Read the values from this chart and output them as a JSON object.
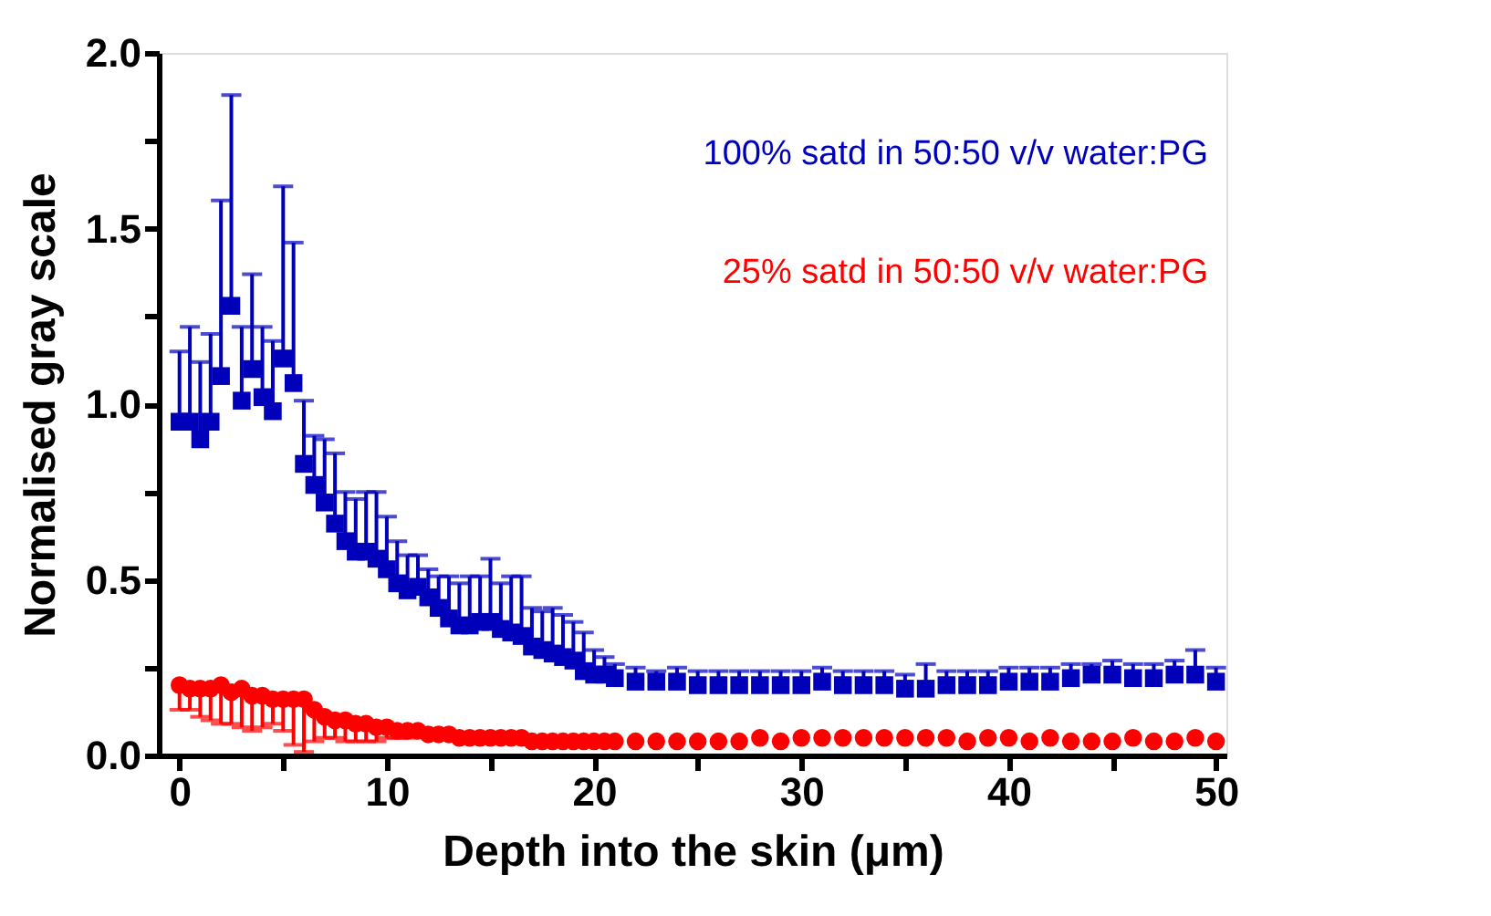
{
  "chart_data": {
    "type": "scatter",
    "xlabel": "Depth into the skin (μm)",
    "ylabel": "Normalised gray scale",
    "x": [
      0,
      0.5,
      1,
      1.5,
      2,
      2.5,
      3,
      3.5,
      4,
      4.5,
      5,
      5.5,
      6,
      6.5,
      7,
      7.5,
      8,
      8.5,
      9,
      9.5,
      10,
      10.5,
      11,
      11.5,
      12,
      12.5,
      13,
      13.5,
      14,
      14.5,
      15,
      15.5,
      16,
      16.5,
      17,
      17.5,
      18,
      18.5,
      19,
      19.5,
      20,
      20.5,
      21,
      22,
      23,
      24,
      25,
      26,
      27,
      28,
      29,
      30,
      31,
      32,
      33,
      34,
      35,
      36,
      37,
      38,
      39,
      40,
      41,
      42,
      43,
      44,
      45,
      46,
      47,
      48,
      49,
      50
    ],
    "series": [
      {
        "name": "100% satd in 50:50 v/v water:PG",
        "color": "#0000bb",
        "marker": "square",
        "values": [
          0.95,
          0.95,
          0.9,
          0.95,
          1.08,
          1.28,
          1.01,
          1.1,
          1.02,
          0.98,
          1.13,
          1.06,
          0.83,
          0.77,
          0.72,
          0.66,
          0.61,
          0.58,
          0.58,
          0.56,
          0.53,
          0.49,
          0.47,
          0.48,
          0.45,
          0.42,
          0.39,
          0.37,
          0.37,
          0.38,
          0.38,
          0.36,
          0.35,
          0.34,
          0.31,
          0.3,
          0.29,
          0.28,
          0.27,
          0.24,
          0.23,
          0.23,
          0.22,
          0.21,
          0.21,
          0.21,
          0.2,
          0.2,
          0.2,
          0.2,
          0.2,
          0.2,
          0.21,
          0.2,
          0.2,
          0.2,
          0.19,
          0.19,
          0.2,
          0.2,
          0.2,
          0.21,
          0.21,
          0.21,
          0.22,
          0.23,
          0.23,
          0.22,
          0.22,
          0.23,
          0.23,
          0.21
        ],
        "errors": [
          [
            0.95,
            1.15
          ],
          [
            0.95,
            1.22
          ],
          [
            0.9,
            1.12
          ],
          [
            0.95,
            1.2
          ],
          [
            1.08,
            1.58
          ],
          [
            1.28,
            1.88
          ],
          [
            1.01,
            1.22
          ],
          [
            1.1,
            1.37
          ],
          [
            1.02,
            1.22
          ],
          [
            0.98,
            1.18
          ],
          [
            1.13,
            1.62
          ],
          [
            1.06,
            1.46
          ],
          [
            0.83,
            1.01
          ],
          [
            0.77,
            0.91
          ],
          [
            0.72,
            0.9
          ],
          [
            0.66,
            0.86
          ],
          [
            0.61,
            0.75
          ],
          [
            0.58,
            0.73
          ],
          [
            0.58,
            0.75
          ],
          [
            0.56,
            0.75
          ],
          [
            0.53,
            0.68
          ],
          [
            0.49,
            0.61
          ],
          [
            0.47,
            0.57
          ],
          [
            0.48,
            0.57
          ],
          [
            0.45,
            0.53
          ],
          [
            0.42,
            0.51
          ],
          [
            0.39,
            0.51
          ],
          [
            0.37,
            0.49
          ],
          [
            0.37,
            0.51
          ],
          [
            0.38,
            0.51
          ],
          [
            0.38,
            0.56
          ],
          [
            0.36,
            0.49
          ],
          [
            0.35,
            0.51
          ],
          [
            0.34,
            0.51
          ],
          [
            0.31,
            0.42
          ],
          [
            0.3,
            0.41
          ],
          [
            0.29,
            0.42
          ],
          [
            0.28,
            0.4
          ],
          [
            0.27,
            0.38
          ],
          [
            0.24,
            0.35
          ],
          [
            0.23,
            0.3
          ],
          [
            0.23,
            0.28
          ],
          [
            0.22,
            0.26
          ],
          [
            0.21,
            0.25
          ],
          [
            0.21,
            0.24
          ],
          [
            0.21,
            0.25
          ],
          [
            0.2,
            0.24
          ],
          [
            0.2,
            0.24
          ],
          [
            0.2,
            0.24
          ],
          [
            0.2,
            0.24
          ],
          [
            0.2,
            0.24
          ],
          [
            0.2,
            0.24
          ],
          [
            0.21,
            0.25
          ],
          [
            0.2,
            0.24
          ],
          [
            0.2,
            0.24
          ],
          [
            0.2,
            0.24
          ],
          [
            0.19,
            0.23
          ],
          [
            0.19,
            0.26
          ],
          [
            0.2,
            0.24
          ],
          [
            0.2,
            0.24
          ],
          [
            0.2,
            0.24
          ],
          [
            0.21,
            0.25
          ],
          [
            0.21,
            0.25
          ],
          [
            0.21,
            0.25
          ],
          [
            0.22,
            0.26
          ],
          [
            0.23,
            0.26
          ],
          [
            0.23,
            0.27
          ],
          [
            0.22,
            0.26
          ],
          [
            0.22,
            0.26
          ],
          [
            0.23,
            0.27
          ],
          [
            0.23,
            0.3
          ],
          [
            0.21,
            0.25
          ]
        ]
      },
      {
        "name": "25% satd in 50:50 v/v water:PG",
        "color": "#ff0000",
        "marker": "circle",
        "values": [
          0.2,
          0.19,
          0.19,
          0.19,
          0.2,
          0.18,
          0.19,
          0.17,
          0.17,
          0.16,
          0.16,
          0.16,
          0.16,
          0.13,
          0.11,
          0.1,
          0.1,
          0.09,
          0.09,
          0.08,
          0.08,
          0.07,
          0.07,
          0.07,
          0.06,
          0.06,
          0.06,
          0.05,
          0.05,
          0.05,
          0.05,
          0.05,
          0.05,
          0.05,
          0.04,
          0.04,
          0.04,
          0.04,
          0.04,
          0.04,
          0.04,
          0.04,
          0.04,
          0.04,
          0.04,
          0.04,
          0.04,
          0.04,
          0.04,
          0.05,
          0.04,
          0.05,
          0.05,
          0.05,
          0.05,
          0.05,
          0.05,
          0.05,
          0.05,
          0.04,
          0.05,
          0.05,
          0.04,
          0.05,
          0.04,
          0.04,
          0.04,
          0.05,
          0.04,
          0.04,
          0.05,
          0.04
        ],
        "errors": [
          [
            0.13,
            0.2
          ],
          [
            0.13,
            0.19
          ],
          [
            0.11,
            0.19
          ],
          [
            0.1,
            0.19
          ],
          [
            0.09,
            0.2
          ],
          [
            0.09,
            0.18
          ],
          [
            0.08,
            0.19
          ],
          [
            0.07,
            0.17
          ],
          [
            0.08,
            0.17
          ],
          [
            0.09,
            0.16
          ],
          [
            0.07,
            0.16
          ],
          [
            0.03,
            0.16
          ],
          [
            0.01,
            0.16
          ],
          [
            0.04,
            0.13
          ],
          [
            0.05,
            0.11
          ],
          [
            0.05,
            0.1
          ],
          [
            0.04,
            0.1
          ],
          [
            0.04,
            0.09
          ],
          [
            0.04,
            0.09
          ],
          [
            0.04,
            0.08
          ],
          [
            0.05,
            0.08
          ],
          [
            0.05,
            0.07
          ],
          [
            0.05,
            0.07
          ],
          null,
          null,
          null,
          null,
          null,
          null,
          null,
          null,
          null,
          null,
          null,
          null,
          null,
          null,
          null,
          null,
          null,
          null,
          null,
          null,
          null,
          null,
          null,
          null,
          null,
          null,
          null,
          null,
          null,
          null,
          null,
          null,
          null,
          null,
          null,
          null,
          null,
          null,
          null,
          null,
          null,
          null,
          null,
          null,
          null,
          null,
          null,
          null,
          null
        ]
      }
    ],
    "xlim": [
      -1,
      50.5
    ],
    "xticks": [
      0,
      {
        "value": 5,
        "label": null
      },
      10,
      {
        "value": 15,
        "label": null
      },
      20,
      {
        "value": 25,
        "label": null
      },
      30,
      {
        "value": 35,
        "label": null
      },
      40,
      {
        "value": 45,
        "label": null
      },
      50
    ],
    "ylim": [
      0,
      2
    ],
    "yticks": [
      {
        "value": 0,
        "label": "0.0"
      },
      {
        "value": 0.25,
        "label": null
      },
      0.5,
      {
        "value": 0.75,
        "label": null
      },
      {
        "value": 1,
        "label": "1.0"
      },
      {
        "value": 1.25,
        "label": null
      },
      1.5,
      {
        "value": 1.75,
        "label": null
      },
      {
        "value": 2,
        "label": "2.0"
      }
    ],
    "grid": false,
    "legend": "top right"
  }
}
